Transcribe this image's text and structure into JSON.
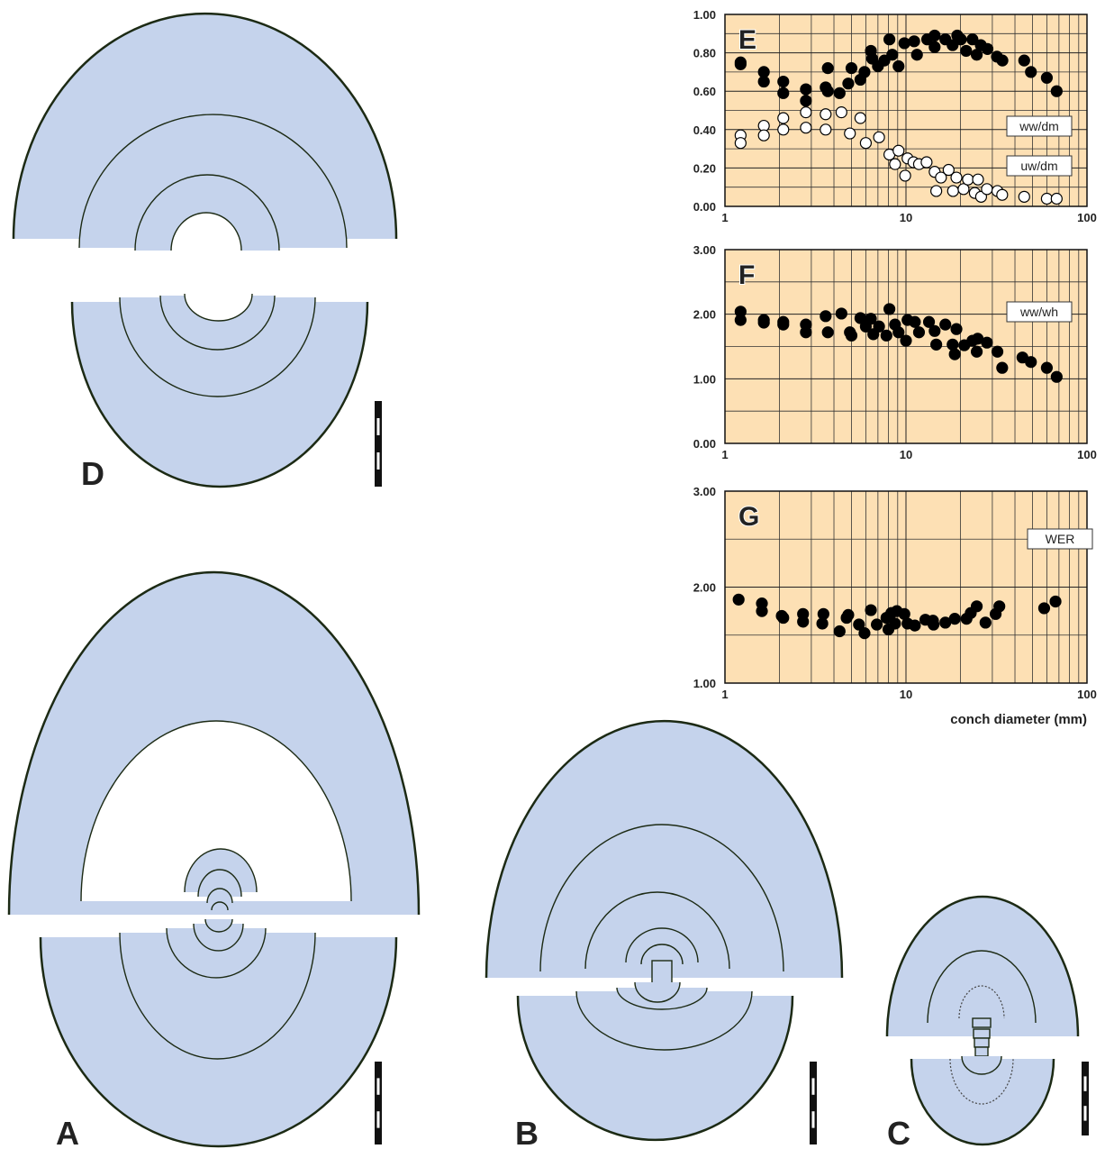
{
  "specimens": [
    {
      "label": "D"
    },
    {
      "label": "A"
    },
    {
      "label": "B"
    },
    {
      "label": "C"
    }
  ],
  "chart_data": [
    {
      "type": "scatter",
      "title": "E",
      "xlog": true,
      "grid": true,
      "background": "#fde0b4",
      "xlim": [
        1,
        100
      ],
      "xticks": [
        1,
        10,
        100
      ],
      "ylim": [
        0,
        1
      ],
      "yticks": [
        {
          "value": 0,
          "label": "0.00"
        },
        {
          "value": 0.2,
          "label": "0.20"
        },
        {
          "value": 0.4,
          "label": "0.40"
        },
        {
          "value": 0.6,
          "label": "0.60"
        },
        {
          "value": 0.8,
          "label": "0.80"
        },
        {
          "value": 1,
          "label": "1.00"
        }
      ],
      "series": [
        {
          "name": "ww/dm",
          "color": "#000000",
          "x": [
            1.22,
            1.22,
            1.64,
            1.64,
            2.1,
            2.1,
            2.8,
            2.8,
            3.6,
            3.7,
            3.7,
            4.3,
            4.8,
            5.0,
            5.6,
            5.9,
            6.4,
            6.5,
            7.0,
            7.6,
            8.1,
            8.4,
            9.1,
            9.8,
            11.1,
            11.5,
            13.1,
            14.4,
            14.4,
            16.5,
            18.1,
            19.2,
            20.1,
            21.5,
            23.3,
            24.6,
            25.9,
            28.2,
            31.8,
            34.1,
            45,
            49,
            60,
            68
          ],
          "values": [
            0.75,
            0.74,
            0.7,
            0.65,
            0.65,
            0.59,
            0.61,
            0.55,
            0.62,
            0.6,
            0.72,
            0.59,
            0.64,
            0.72,
            0.66,
            0.7,
            0.81,
            0.77,
            0.73,
            0.76,
            0.87,
            0.79,
            0.73,
            0.85,
            0.86,
            0.79,
            0.87,
            0.83,
            0.89,
            0.87,
            0.84,
            0.89,
            0.87,
            0.81,
            0.87,
            0.79,
            0.84,
            0.82,
            0.78,
            0.76,
            0.76,
            0.7,
            0.67,
            0.6
          ]
        },
        {
          "name": "uw/dm",
          "color": "#ffffff",
          "x": [
            1.22,
            1.22,
            1.64,
            1.64,
            2.1,
            2.1,
            2.8,
            2.8,
            3.6,
            3.6,
            4.4,
            4.9,
            5.6,
            6.0,
            7.1,
            8.1,
            8.7,
            9.1,
            9.9,
            10.2,
            11,
            11.8,
            13,
            14.4,
            14.7,
            15.6,
            17.2,
            18.2,
            19,
            20.8,
            22,
            24,
            25,
            26,
            28,
            32,
            34,
            45,
            60,
            68
          ],
          "values": [
            0.37,
            0.33,
            0.42,
            0.37,
            0.46,
            0.4,
            0.49,
            0.41,
            0.48,
            0.4,
            0.49,
            0.38,
            0.46,
            0.33,
            0.36,
            0.27,
            0.22,
            0.29,
            0.16,
            0.25,
            0.23,
            0.22,
            0.23,
            0.18,
            0.08,
            0.15,
            0.19,
            0.08,
            0.15,
            0.09,
            0.14,
            0.07,
            0.14,
            0.05,
            0.09,
            0.08,
            0.06,
            0.05,
            0.04,
            0.04
          ]
        }
      ]
    },
    {
      "type": "scatter",
      "title": "F",
      "xlog": true,
      "grid": true,
      "background": "#fde0b4",
      "xlim": [
        1,
        100
      ],
      "xticks": [
        1,
        10,
        100
      ],
      "ylim": [
        0,
        3
      ],
      "yticks": [
        {
          "value": 0,
          "label": "0.00"
        },
        {
          "value": 1,
          "label": "1.00"
        },
        {
          "value": 2,
          "label": "2.00"
        },
        {
          "value": 3,
          "label": "3.00"
        }
      ],
      "series": [
        {
          "name": "ww/wh",
          "color": "#000000",
          "x": [
            1.22,
            1.22,
            1.64,
            1.64,
            2.1,
            2.1,
            2.8,
            2.8,
            3.6,
            3.7,
            4.4,
            4.9,
            5.0,
            5.6,
            6.0,
            6.4,
            6.6,
            7.1,
            7.8,
            8.1,
            8.7,
            9.1,
            10,
            10.2,
            11.2,
            11.8,
            13.4,
            14.4,
            14.7,
            16.5,
            18.1,
            18.6,
            19,
            21,
            23.3,
            24.6,
            24.9,
            28,
            32,
            34,
            44,
            49,
            60,
            68
          ],
          "values": [
            2.04,
            1.91,
            1.91,
            1.87,
            1.88,
            1.84,
            1.84,
            1.72,
            1.97,
            1.72,
            2.01,
            1.72,
            1.67,
            1.94,
            1.81,
            1.93,
            1.69,
            1.81,
            1.67,
            2.08,
            1.84,
            1.72,
            1.59,
            1.91,
            1.88,
            1.72,
            1.88,
            1.74,
            1.53,
            1.84,
            1.53,
            1.38,
            1.77,
            1.52,
            1.59,
            1.42,
            1.62,
            1.56,
            1.42,
            1.17,
            1.33,
            1.26,
            1.17,
            1.03
          ]
        }
      ]
    },
    {
      "type": "scatter",
      "title": "G",
      "xlog": true,
      "grid": true,
      "background": "#fde0b4",
      "xlabel": "conch diameter (mm)",
      "xlim": [
        1,
        100
      ],
      "xticks": [
        1,
        10,
        100
      ],
      "ylim": [
        1,
        3
      ],
      "yticks": [
        {
          "value": 1,
          "label": "1.00"
        },
        {
          "value": 2,
          "label": "2.00"
        },
        {
          "value": 3,
          "label": "3.00"
        }
      ],
      "series": [
        {
          "name": "WER",
          "color": "#000000",
          "x": [
            1.19,
            1.6,
            1.6,
            2.06,
            2.1,
            2.7,
            2.7,
            3.5,
            3.45,
            4.3,
            4.7,
            4.8,
            5.5,
            5.9,
            6.4,
            6.9,
            7.8,
            8.0,
            8.3,
            8.9,
            8.7,
            9.8,
            10.2,
            11.2,
            12.8,
            14.1,
            14.2,
            16.5,
            18.6,
            21.6,
            22.8,
            24.6,
            27.5,
            31.3,
            32.8,
            58,
            67
          ],
          "values": [
            1.87,
            1.83,
            1.75,
            1.7,
            1.68,
            1.72,
            1.64,
            1.72,
            1.62,
            1.54,
            1.68,
            1.71,
            1.61,
            1.52,
            1.76,
            1.61,
            1.68,
            1.56,
            1.73,
            1.75,
            1.62,
            1.72,
            1.62,
            1.6,
            1.66,
            1.65,
            1.61,
            1.63,
            1.67,
            1.67,
            1.73,
            1.8,
            1.63,
            1.72,
            1.8,
            1.78,
            1.85
          ]
        }
      ]
    }
  ]
}
